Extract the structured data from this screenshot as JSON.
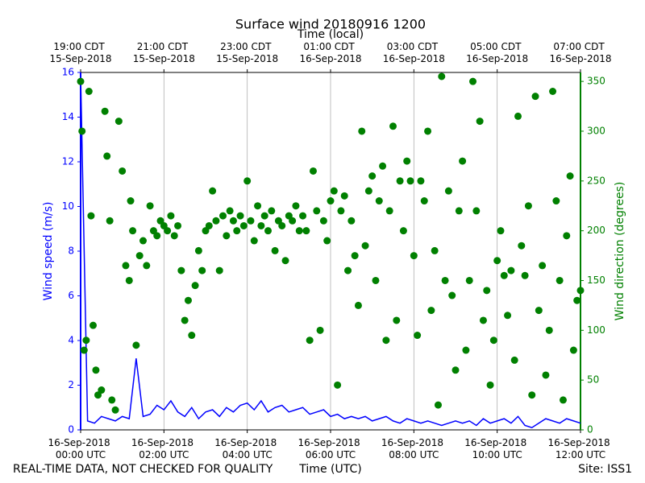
{
  "chart_data": {
    "type": "line",
    "title": "Surface wind 20180916 1200",
    "top_xlabel": "Time (local)",
    "xlabel": "Time (UTC)",
    "ylabel": "Wind speed (m/s)",
    "y2label": "Wind direction (degrees)",
    "footer_left": "REAL-TIME DATA, NOT CHECKED FOR QUALITY",
    "footer_right": "Site: ISS1",
    "xlim": [
      0,
      720
    ],
    "xticks": [
      {
        "value": 0,
        "label": "16-Sep-2018\n00:00 UTC"
      },
      {
        "value": 120,
        "label": "16-Sep-2018\n02:00 UTC"
      },
      {
        "value": 240,
        "label": "16-Sep-2018\n04:00 UTC"
      },
      {
        "value": 360,
        "label": "16-Sep-2018\n06:00 UTC"
      },
      {
        "value": 480,
        "label": "16-Sep-2018\n08:00 UTC"
      },
      {
        "value": 600,
        "label": "16-Sep-2018\n10:00 UTC"
      },
      {
        "value": 720,
        "label": "16-Sep-2018\n12:00 UTC"
      }
    ],
    "top_xticks": [
      {
        "value": 0,
        "label": "19:00 CDT\n15-Sep-2018"
      },
      {
        "value": 120,
        "label": "21:00 CDT\n15-Sep-2018"
      },
      {
        "value": 240,
        "label": "23:00 CDT\n15-Sep-2018"
      },
      {
        "value": 360,
        "label": "01:00 CDT\n16-Sep-2018"
      },
      {
        "value": 480,
        "label": "03:00 CDT\n16-Sep-2018"
      },
      {
        "value": 600,
        "label": "05:00 CDT\n16-Sep-2018"
      },
      {
        "value": 720,
        "label": "07:00 CDT\n16-Sep-2018"
      }
    ],
    "ylim": [
      0,
      16
    ],
    "yticks": [
      0,
      2,
      4,
      6,
      8,
      10,
      12,
      14,
      16
    ],
    "y2lim": [
      0,
      359
    ],
    "y2ticks": [
      0,
      50,
      100,
      150,
      200,
      250,
      300,
      350
    ],
    "ycolor": "#0000ff",
    "y2color": "#008000",
    "xgrid": true,
    "series": [
      {
        "type": "line",
        "color": "#0000ff",
        "axis": "y",
        "x": [
          0,
          10,
          20,
          30,
          40,
          50,
          60,
          70,
          80,
          90,
          100,
          110,
          120,
          130,
          140,
          150,
          160,
          170,
          180,
          190,
          200,
          210,
          220,
          230,
          240,
          250,
          260,
          270,
          280,
          290,
          300,
          310,
          320,
          330,
          340,
          350,
          360,
          370,
          380,
          390,
          400,
          410,
          420,
          430,
          440,
          450,
          460,
          470,
          480,
          490,
          500,
          510,
          520,
          530,
          540,
          550,
          560,
          570,
          580,
          590,
          600,
          610,
          620,
          630,
          640,
          650,
          660,
          670,
          680,
          690,
          700,
          710,
          720
        ],
        "values": [
          15.9,
          0.4,
          0.3,
          0.6,
          0.5,
          0.4,
          0.6,
          0.5,
          3.2,
          0.6,
          0.7,
          1.1,
          0.9,
          1.3,
          0.8,
          0.6,
          1.0,
          0.5,
          0.8,
          0.9,
          0.6,
          1.0,
          0.8,
          1.1,
          1.2,
          0.9,
          1.3,
          0.8,
          1.0,
          1.1,
          0.8,
          0.9,
          1.0,
          0.7,
          0.8,
          0.9,
          0.6,
          0.7,
          0.5,
          0.6,
          0.5,
          0.6,
          0.4,
          0.5,
          0.6,
          0.4,
          0.3,
          0.5,
          0.4,
          0.3,
          0.4,
          0.3,
          0.2,
          0.3,
          0.4,
          0.3,
          0.4,
          0.2,
          0.5,
          0.3,
          0.4,
          0.5,
          0.3,
          0.6,
          0.2,
          0.1,
          0.3,
          0.5,
          0.4,
          0.3,
          0.5,
          0.4,
          0.3
        ]
      },
      {
        "type": "scatter",
        "color": "#008000",
        "axis": "y2",
        "x": [
          0,
          2,
          5,
          8,
          12,
          15,
          18,
          22,
          25,
          30,
          35,
          38,
          42,
          45,
          50,
          55,
          60,
          65,
          70,
          72,
          75,
          80,
          85,
          90,
          95,
          100,
          105,
          110,
          115,
          120,
          125,
          130,
          135,
          140,
          145,
          150,
          155,
          160,
          165,
          170,
          175,
          180,
          185,
          190,
          195,
          200,
          205,
          210,
          215,
          220,
          225,
          230,
          235,
          240,
          245,
          250,
          255,
          260,
          265,
          270,
          275,
          280,
          285,
          290,
          295,
          300,
          305,
          310,
          315,
          320,
          325,
          330,
          335,
          340,
          345,
          350,
          355,
          360,
          365,
          370,
          375,
          380,
          385,
          390,
          395,
          400,
          405,
          410,
          415,
          420,
          425,
          430,
          435,
          440,
          445,
          450,
          455,
          460,
          465,
          470,
          475,
          480,
          485,
          490,
          495,
          500,
          505,
          510,
          515,
          520,
          525,
          530,
          535,
          540,
          545,
          550,
          555,
          560,
          565,
          570,
          575,
          580,
          585,
          590,
          595,
          600,
          605,
          610,
          615,
          620,
          625,
          630,
          635,
          640,
          645,
          650,
          655,
          660,
          665,
          670,
          675,
          680,
          685,
          690,
          695,
          700,
          705,
          710,
          715,
          720
        ],
        "values": [
          350,
          300,
          80,
          90,
          340,
          215,
          105,
          60,
          35,
          40,
          320,
          275,
          210,
          30,
          20,
          310,
          260,
          165,
          150,
          230,
          200,
          85,
          175,
          190,
          165,
          225,
          200,
          195,
          210,
          205,
          200,
          215,
          195,
          205,
          160,
          110,
          130,
          95,
          145,
          180,
          160,
          200,
          205,
          240,
          210,
          160,
          215,
          195,
          220,
          210,
          200,
          215,
          205,
          250,
          210,
          190,
          225,
          205,
          215,
          200,
          220,
          180,
          210,
          205,
          170,
          215,
          210,
          225,
          200,
          215,
          200,
          90,
          260,
          220,
          100,
          210,
          190,
          230,
          240,
          45,
          220,
          235,
          160,
          210,
          175,
          125,
          300,
          185,
          240,
          255,
          150,
          230,
          265,
          90,
          220,
          305,
          110,
          250,
          200,
          270,
          250,
          175,
          95,
          250,
          230,
          300,
          120,
          180,
          25,
          355,
          150,
          240,
          135,
          60,
          220,
          270,
          80,
          150,
          350,
          220,
          310,
          110,
          140,
          45,
          90,
          170,
          200,
          155,
          115,
          160,
          70,
          315,
          185,
          155,
          225,
          35,
          335,
          120,
          165,
          55,
          100,
          340,
          230,
          150,
          30,
          195,
          255,
          80,
          130,
          140
        ]
      }
    ]
  }
}
